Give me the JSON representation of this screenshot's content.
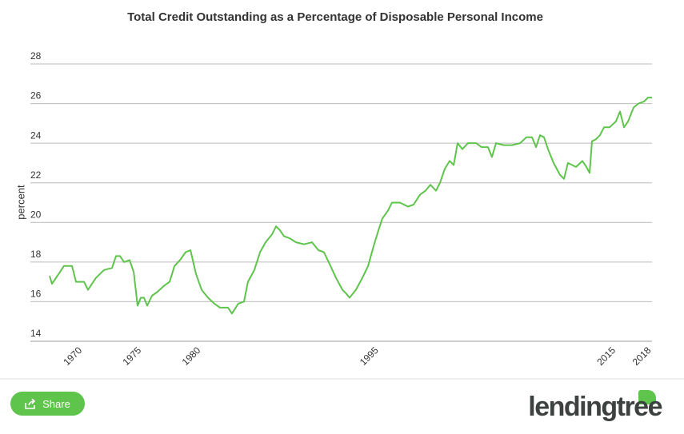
{
  "chart_data": {
    "type": "line",
    "title": "Total Credit Outstanding as a Percentage of Disposable Personal Income",
    "y_label": "percent",
    "color": "#5ec44b",
    "x": [
      1967.5,
      1967.7,
      1968.38,
      1968.71,
      1969.39,
      1969.73,
      1970.4,
      1970.74,
      1971.41,
      1972.09,
      1972.76,
      1973.1,
      1973.44,
      1973.78,
      1974.25,
      1974.59,
      1974.92,
      1975.19,
      1975.46,
      1975.73,
      1976.14,
      1976.61,
      1977.15,
      1977.62,
      1978.03,
      1978.5,
      1978.97,
      1979.38,
      1979.85,
      1980.32,
      1980.86,
      1981.4,
      1981.87,
      1982.55,
      1982.88,
      1983.42,
      1983.9,
      1984.23,
      1984.77,
      1985.25,
      1985.72,
      1986.26,
      1986.6,
      1986.93,
      1987.27,
      1987.74,
      1988.28,
      1988.96,
      1989.63,
      1990.17,
      1990.64,
      1991.12,
      1991.66,
      1992.2,
      1992.53,
      1992.8,
      1993.34,
      1993.88,
      1994.36,
      1994.83,
      1995.23,
      1995.57,
      1996.04,
      1996.38,
      1997.05,
      1997.73,
      1998.2,
      1998.74,
      1999.21,
      1999.62,
      2000.09,
      2000.43,
      2000.83,
      2001.24,
      2001.58,
      2001.91,
      2002.32,
      2002.79,
      2003.47,
      2003.94,
      2004.48,
      2004.81,
      2005.15,
      2005.83,
      2006.5,
      2007.18,
      2007.72,
      2008.19,
      2008.53,
      2008.86,
      2009.2,
      2009.54,
      2010.01,
      2010.55,
      2010.89,
      2011.22,
      2011.9,
      2012.44,
      2012.78,
      2013.05,
      2013.25,
      2013.59,
      2013.92,
      2014.26,
      2014.73,
      2015.27,
      2015.61,
      2015.95,
      2016.29,
      2016.76,
      2017.16,
      2017.63,
      2017.97,
      2018.31
    ],
    "values": [
      17.3,
      16.9,
      17.5,
      17.8,
      17.8,
      17.0,
      17.0,
      16.6,
      17.2,
      17.6,
      17.7,
      18.3,
      18.3,
      18.0,
      18.1,
      17.5,
      15.8,
      16.2,
      16.2,
      15.8,
      16.3,
      16.5,
      16.8,
      17.0,
      17.8,
      18.1,
      18.5,
      18.6,
      17.4,
      16.6,
      16.2,
      15.9,
      15.7,
      15.7,
      15.4,
      15.9,
      16.0,
      17.0,
      17.6,
      18.5,
      19.0,
      19.4,
      19.8,
      19.6,
      19.3,
      19.2,
      19.0,
      18.9,
      19.0,
      18.6,
      18.5,
      17.9,
      17.2,
      16.6,
      16.4,
      16.2,
      16.6,
      17.2,
      17.8,
      18.8,
      19.6,
      20.2,
      20.6,
      21.0,
      21.0,
      20.8,
      20.9,
      21.4,
      21.6,
      21.9,
      21.6,
      22.0,
      22.7,
      23.1,
      22.9,
      24.0,
      23.7,
      24.0,
      24.0,
      23.8,
      23.8,
      23.3,
      24.0,
      23.9,
      23.9,
      24.0,
      24.3,
      24.3,
      23.8,
      24.4,
      24.3,
      23.7,
      23.0,
      22.4,
      22.2,
      23.0,
      22.8,
      23.1,
      22.8,
      22.5,
      24.1,
      24.2,
      24.4,
      24.8,
      24.8,
      25.1,
      25.6,
      24.8,
      25.1,
      25.8,
      26.0,
      26.1,
      26.3,
      26.3
    ],
    "xlim": [
      1967.5,
      2018.31
    ],
    "xticks": [
      1970,
      1975,
      1980,
      1995,
      2015,
      2018
    ],
    "ylim": [
      14,
      28
    ],
    "yticks": [
      14,
      16,
      18,
      20,
      22,
      24,
      26,
      28
    ],
    "grid": true
  },
  "share_button": "Share",
  "logo": "lendingtree"
}
